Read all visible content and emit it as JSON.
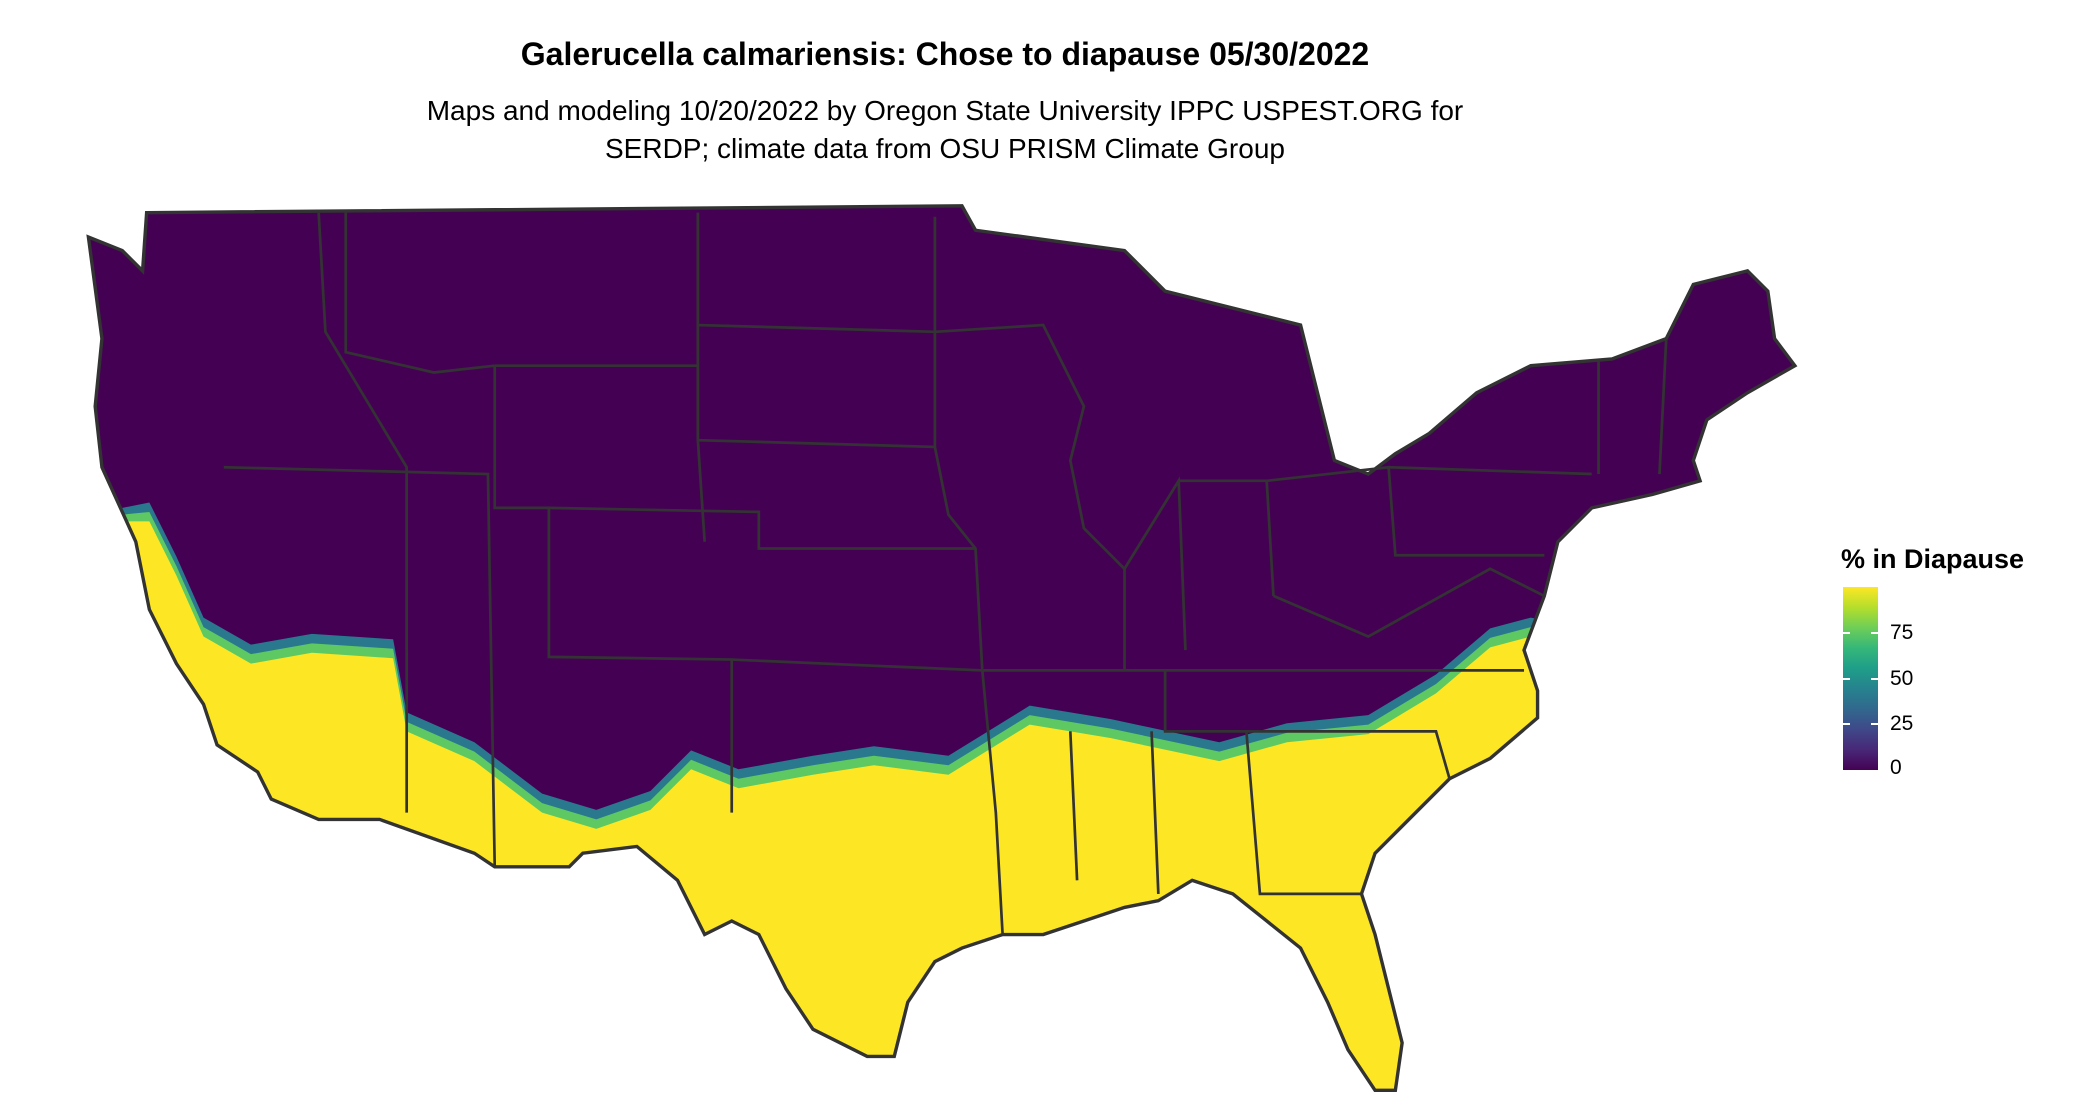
{
  "chart_data": {
    "type": "heatmap",
    "title": "Galerucella calmariensis: Chose to diapause 05/30/2022",
    "subtitle_lines": [
      "Maps and modeling 10/20/2022 by Oregon State University IPPC USPEST.ORG for",
      "SERDP; climate data from OSU PRISM Climate Group"
    ],
    "legend": {
      "title": "% in Diapause",
      "ticks": [
        0,
        25,
        50,
        75
      ],
      "tick_labels": [
        "0",
        "25",
        "50",
        "75"
      ],
      "range": [
        0,
        100
      ],
      "placement": "right",
      "palette": [
        "#440154",
        "#3e4989",
        "#26828e",
        "#35b779",
        "#fde725"
      ]
    },
    "description_values": {
      "north_region_value": 0,
      "south_region_value": 100
    },
    "colors": {
      "low": "#440154",
      "high": "#fde725",
      "border": "#333333"
    }
  }
}
